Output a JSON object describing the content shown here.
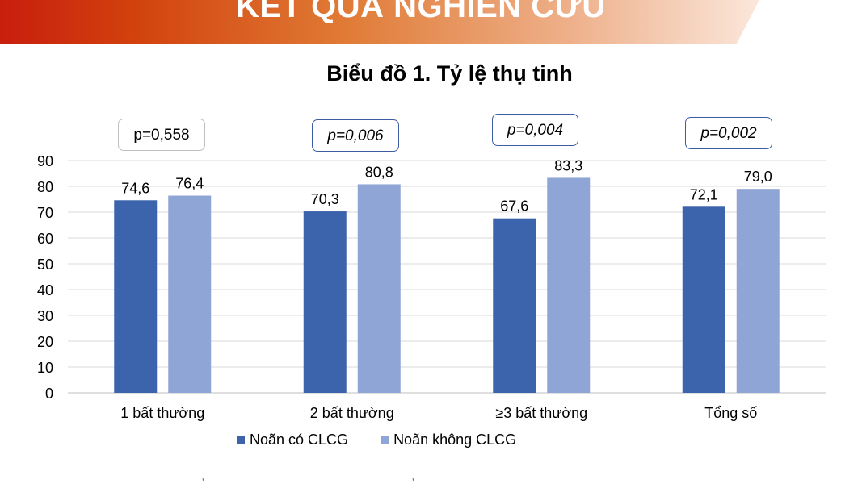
{
  "header": {
    "title": "KẾT QUẢ NGHIÊN CỨU"
  },
  "colors": {
    "series1": "#3c64ad",
    "series2": "#8fa5d6",
    "grid": "#d9d9d9",
    "banner_start": "#c81e0e"
  },
  "p_values": [
    {
      "text": "p=0,558",
      "style": "plain"
    },
    {
      "text": "p=0,006",
      "style": "italic"
    },
    {
      "text": "p=0,004",
      "style": "italic"
    },
    {
      "text": "p=0,002",
      "style": "italic"
    }
  ],
  "chart_data": {
    "type": "bar",
    "title": "Biểu đồ 1. Tỷ lệ thụ tinh",
    "categories": [
      "1 bất thường",
      "2 bất thường",
      "≥3 bất thường",
      "Tổng số"
    ],
    "series": [
      {
        "name": "Noãn có CLCG",
        "values": [
          74.6,
          70.3,
          67.6,
          72.1
        ],
        "labels": [
          "74,6",
          "70,3",
          "67,6",
          "72,1"
        ]
      },
      {
        "name": "Noãn không CLCG",
        "values": [
          76.4,
          80.8,
          83.3,
          79.0
        ],
        "labels": [
          "76,4",
          "80,8",
          "83,3",
          "79,0"
        ]
      }
    ],
    "ylim": [
      0,
      90
    ],
    "yticks": [
      0,
      10,
      20,
      30,
      40,
      50,
      60,
      70,
      80,
      90
    ],
    "grid": true,
    "legend": "bottom",
    "xlabel": "",
    "ylabel": ""
  }
}
